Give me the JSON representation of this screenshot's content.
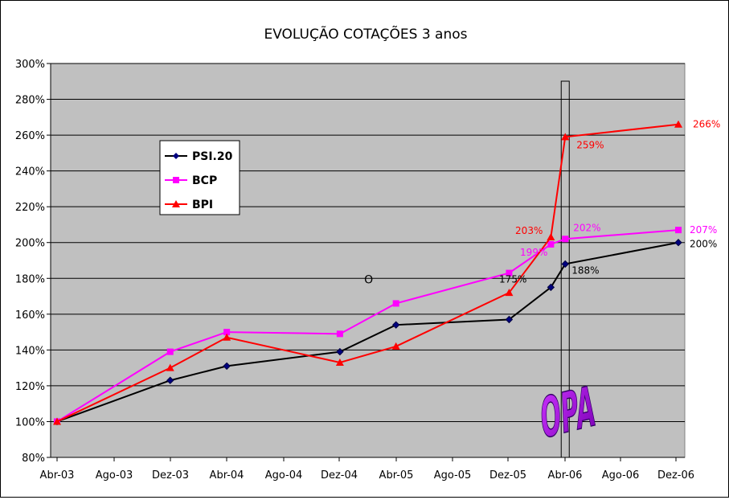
{
  "chart_data": {
    "type": "line",
    "title": "EVOLUÇÃO COTAÇÕES 3 anos",
    "xlabel": "",
    "ylabel": "",
    "ylim": [
      80,
      300
    ],
    "y_ticks": [
      "80%",
      "100%",
      "120%",
      "140%",
      "160%",
      "180%",
      "200%",
      "220%",
      "240%",
      "260%",
      "280%",
      "300%"
    ],
    "x_ticks": [
      "Abr-03",
      "Ago-03",
      "Dez-03",
      "Abr-04",
      "Ago-04",
      "Dez-04",
      "Abr-05",
      "Ago-05",
      "Dez-05",
      "Abr-06",
      "Ago-06",
      "Dez-06"
    ],
    "grid": true,
    "legend_placement": "upper-left inside plot",
    "plot_background": "#c0c0c0",
    "series": [
      {
        "name": "PSI.20",
        "color": "#000000",
        "marker": "diamond",
        "marker_color": "#000080",
        "points": [
          {
            "x": "2003-04-01",
            "y": 100
          },
          {
            "x": "2003-12-01",
            "y": 123
          },
          {
            "x": "2004-04-01",
            "y": 131
          },
          {
            "x": "2004-12-01",
            "y": 139
          },
          {
            "x": "2005-04-01",
            "y": 154
          },
          {
            "x": "2005-12-01",
            "y": 157
          },
          {
            "x": "2006-03-01",
            "y": 175,
            "label": "175%"
          },
          {
            "x": "2006-04-01",
            "y": 188,
            "label": "188%"
          },
          {
            "x": "2006-12-01",
            "y": 200,
            "label": "200%"
          }
        ]
      },
      {
        "name": "BCP",
        "color": "#ff00ff",
        "marker": "square",
        "marker_color": "#ff00ff",
        "points": [
          {
            "x": "2003-04-01",
            "y": 100
          },
          {
            "x": "2003-12-01",
            "y": 139
          },
          {
            "x": "2004-04-01",
            "y": 150
          },
          {
            "x": "2004-12-01",
            "y": 149
          },
          {
            "x": "2005-04-01",
            "y": 166
          },
          {
            "x": "2005-12-01",
            "y": 183
          },
          {
            "x": "2006-03-01",
            "y": 199,
            "label": "199%"
          },
          {
            "x": "2006-04-01",
            "y": 202,
            "label": "202%"
          },
          {
            "x": "2006-12-01",
            "y": 207,
            "label": "207%"
          }
        ]
      },
      {
        "name": "BPI",
        "color": "#ff0000",
        "marker": "triangle",
        "marker_color": "#ff0000",
        "points": [
          {
            "x": "2003-04-01",
            "y": 100
          },
          {
            "x": "2003-12-01",
            "y": 130
          },
          {
            "x": "2004-04-01",
            "y": 147
          },
          {
            "x": "2004-12-01",
            "y": 133
          },
          {
            "x": "2005-04-01",
            "y": 142
          },
          {
            "x": "2005-12-01",
            "y": 172
          },
          {
            "x": "2006-03-01",
            "y": 203,
            "label": "203%"
          },
          {
            "x": "2006-04-01",
            "y": 259,
            "label": "259%"
          },
          {
            "x": "2006-12-01",
            "y": 266,
            "label": "266%"
          }
        ]
      }
    ],
    "annotations": [
      {
        "text": "OPA",
        "x": "2006-04-01",
        "color": "#9900cc",
        "style": "wordart"
      },
      {
        "text": "O",
        "x": "2005-02-01",
        "y": 180
      }
    ]
  }
}
